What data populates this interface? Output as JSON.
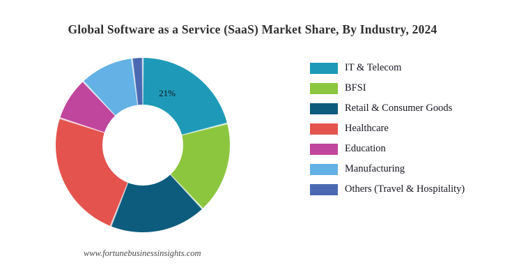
{
  "title": "Global Software as a Service (SaaS) Market Share, By Industry, 2024",
  "footer": "www.fortunebusinessinsights.com",
  "chart_data": {
    "type": "pie",
    "subtype": "donut",
    "title": "Global Software as a Service (SaaS) Market Share, By Industry, 2024",
    "categories": [
      "IT & Telecom",
      "BFSI",
      "Retail & Consumer Goods",
      "Healthcare",
      "Education",
      "Manufacturing",
      "Others (Travel & Hospitality)"
    ],
    "values": [
      21,
      17,
      18,
      24,
      8,
      10,
      2
    ],
    "colors": [
      "#1e9ab8",
      "#8cc63e",
      "#0d5c7d",
      "#e4534e",
      "#c0459c",
      "#63b1e5",
      "#4a69b2"
    ],
    "data_labels": [
      {
        "category": "IT & Telecom",
        "text": "21%"
      }
    ],
    "shown_label": {
      "category": "IT & Telecom",
      "text": "21%"
    },
    "legend_position": "right",
    "start_angle_deg": 0,
    "direction": "clockwise",
    "hole": true
  }
}
